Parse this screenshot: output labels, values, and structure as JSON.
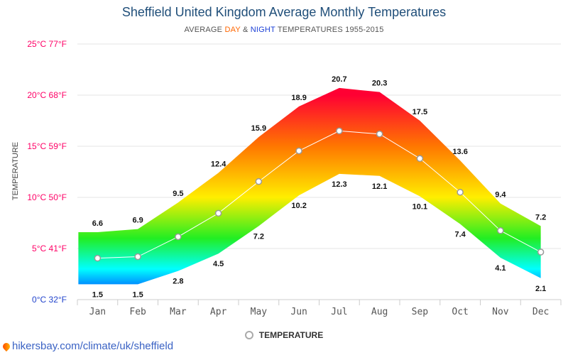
{
  "chart_data": {
    "type": "area",
    "title": "Sheffield United Kingdom Average Monthly Temperatures",
    "subtitle": {
      "prefix": "AVERAGE ",
      "day": "DAY",
      "mid": " & ",
      "night": "NIGHT",
      "suffix": " TEMPERATURES 1955-2015"
    },
    "ylabel": "TEMPERATURE",
    "y_ticks": [
      {
        "value": 0,
        "label": "0°C 32°F",
        "color": "#2244cc"
      },
      {
        "value": 5,
        "label": "5°C 41°F",
        "color": "#ff0066"
      },
      {
        "value": 10,
        "label": "10°C 50°F",
        "color": "#ff0066"
      },
      {
        "value": 15,
        "label": "15°C 59°F",
        "color": "#ff0066"
      },
      {
        "value": 20,
        "label": "20°C 68°F",
        "color": "#ff0066"
      },
      {
        "value": 25,
        "label": "25°C 77°F",
        "color": "#ff0066"
      }
    ],
    "ylim": [
      0,
      25
    ],
    "categories": [
      "Jan",
      "Feb",
      "Mar",
      "Apr",
      "May",
      "Jun",
      "Jul",
      "Aug",
      "Sep",
      "Oct",
      "Nov",
      "Dec"
    ],
    "series": [
      {
        "name": "DAY",
        "values": [
          6.6,
          6.9,
          9.5,
          12.4,
          15.9,
          18.9,
          20.7,
          20.3,
          17.5,
          13.6,
          9.4,
          7.2
        ]
      },
      {
        "name": "NIGHT",
        "values": [
          1.5,
          1.5,
          2.8,
          4.5,
          7.2,
          10.2,
          12.3,
          12.1,
          10.1,
          7.4,
          4.1,
          2.1
        ]
      },
      {
        "name": "TEMPERATURE",
        "values": [
          4.05,
          4.2,
          6.15,
          8.45,
          11.55,
          14.55,
          16.5,
          16.2,
          13.8,
          10.5,
          6.75,
          4.65
        ]
      }
    ],
    "grid": true,
    "legend": "bottom",
    "legend_label": "TEMPERATURE",
    "colors": {
      "hot": "#ff0033",
      "warm": "#ff7700",
      "mild": "#ffee00",
      "cool": "#22ee22",
      "cold": "#00ffff",
      "freezing": "#0022ff",
      "line": "#ffffff",
      "marker_stroke": "#999999",
      "grid": "#e6e6e6"
    }
  },
  "footer": "hikersbay.com/climate/uk/sheffield"
}
